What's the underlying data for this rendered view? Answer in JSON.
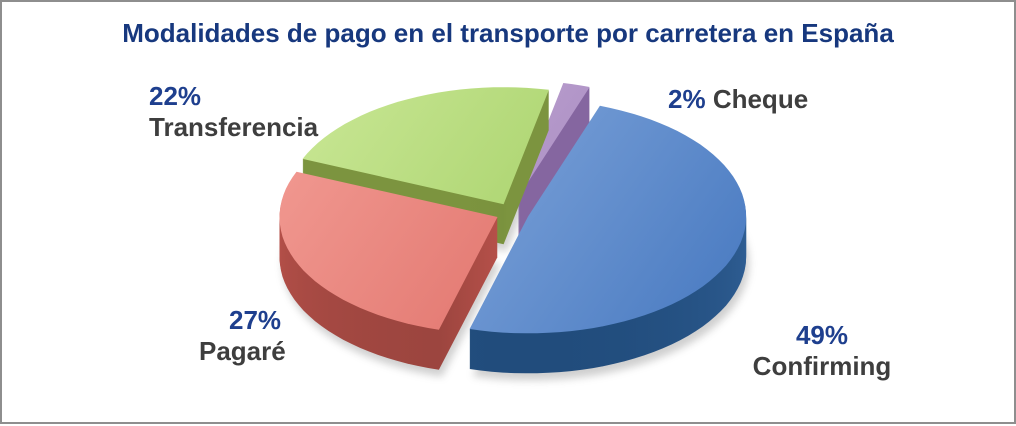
{
  "title": "Modalidades de pago en el transporte por carretera en España",
  "title_color": "#17387E",
  "pct_color": "#1E3F8E",
  "label_color": "#3E3E3E",
  "chart_data": {
    "type": "pie",
    "style": "3d-exploded",
    "title": "Modalidades de pago en el transporte por carretera en España",
    "unit": "%",
    "legend_position": "labels-around-pie",
    "slices": [
      {
        "label": "Cheque",
        "value": 2,
        "pct_label": "2%",
        "color_light": "#C4AAD6",
        "color": "#A284BC",
        "color_dark": "#8566A0",
        "color_darker": "#6B5186"
      },
      {
        "label": "Confirming",
        "value": 49,
        "pct_label": "49%",
        "color_light": "#93B4E3",
        "color": "#4F7FC4",
        "color_dark": "#33639A",
        "color_darker": "#1C4674"
      },
      {
        "label": "Pagaré",
        "value": 27,
        "pct_label": "27%",
        "color_light": "#F29B93",
        "color": "#DB6760",
        "color_dark": "#BA524B",
        "color_darker": "#93413B"
      },
      {
        "label": "Transferencia",
        "value": 22,
        "pct_label": "22%",
        "color_light": "#C9E795",
        "color": "#9BC95A",
        "color_dark": "#7C943F",
        "color_darker": "#62752F"
      }
    ]
  }
}
